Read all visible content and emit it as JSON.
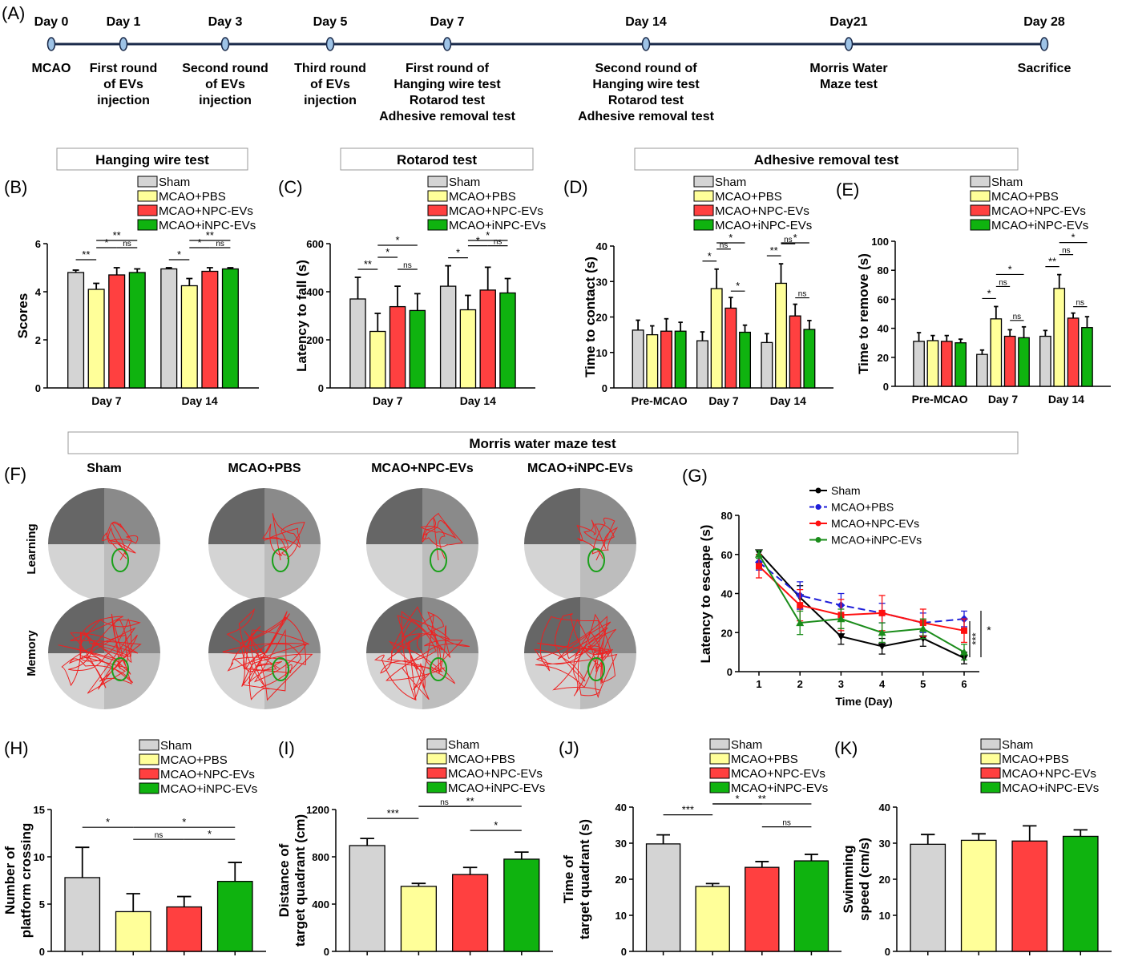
{
  "colors": {
    "sham": "#d4d4d4",
    "pbs": "#ffff99",
    "npc": "#ff4040",
    "inpc": "#0fb30f",
    "line_sham": "#000000",
    "line_pbs": "#1f1fd9",
    "line_npc": "#ff1010",
    "line_inpc": "#1a8c1a",
    "quad_dark": "#666666",
    "quad_mid": "#8a8a8a",
    "quad_light": "#bdbdbd",
    "quad_pale": "#d4d4d4",
    "track": "#ee2020",
    "platform": "#1aa01a"
  },
  "legend": [
    "Sham",
    "MCAO+PBS",
    "MCAO+NPC-EVs",
    "MCAO+iNPC-EVs"
  ],
  "timeline": {
    "panel": "(A)",
    "events": [
      {
        "day": "Day 0",
        "lines": [
          "MCAO"
        ]
      },
      {
        "day": "Day 1",
        "lines": [
          "First round",
          "of EVs",
          "injection"
        ]
      },
      {
        "day": "Day 3",
        "lines": [
          "Second round",
          "of EVs",
          "injection"
        ]
      },
      {
        "day": "Day 5",
        "lines": [
          "Third round",
          "of EVs",
          "injection"
        ]
      },
      {
        "day": "Day 7",
        "lines": [
          "First round of",
          "Hanging wire test",
          "Rotarod test",
          "Adhesive removal test"
        ]
      },
      {
        "day": "Day 14",
        "lines": [
          "Second round of",
          "Hanging wire test",
          "Rotarod test",
          "Adhesive removal test"
        ]
      },
      {
        "day": "Day21",
        "lines": [
          "Morris Water",
          "Maze test"
        ]
      },
      {
        "day": "Day 28",
        "lines": [
          "Sacrifice"
        ]
      }
    ]
  },
  "section_titles": {
    "hanging": "Hanging wire test",
    "rotarod": "Rotarod test",
    "adhesive": "Adhesive removal test",
    "morris": "Morris water maze test"
  },
  "maze": {
    "panel": "(F)",
    "columns": [
      "Sham",
      "MCAO+PBS",
      "MCAO+NPC-EVs",
      "MCAO+iNPC-EVs"
    ],
    "rows": [
      "Learning",
      "Memory"
    ]
  },
  "chart_data": [
    {
      "panel": "(B)",
      "type": "bar",
      "ylabel": "Scores",
      "ylim": [
        0,
        6
      ],
      "yticks": [
        0,
        2,
        4,
        6
      ],
      "groups": [
        "Day 7",
        "Day 14"
      ],
      "values": [
        [
          4.8,
          4.1,
          4.7,
          4.8
        ],
        [
          4.95,
          4.25,
          4.85,
          4.95
        ]
      ],
      "errors": [
        [
          0.1,
          0.25,
          0.3,
          0.15
        ],
        [
          0.05,
          0.3,
          0.15,
          0.05
        ]
      ],
      "sig": [
        {
          "g": 0,
          "a": 0,
          "b": 1,
          "t": "**",
          "lv": 0
        },
        {
          "g": 0,
          "a": 1,
          "b": 2,
          "t": "*",
          "lv": 1
        },
        {
          "g": 0,
          "a": 2,
          "b": 3,
          "t": "ns",
          "lv": 1
        },
        {
          "g": 0,
          "a": 1,
          "b": 3,
          "t": "**",
          "lv": 2
        },
        {
          "g": 1,
          "a": 0,
          "b": 1,
          "t": "*",
          "lv": 0
        },
        {
          "g": 1,
          "a": 1,
          "b": 2,
          "t": "*",
          "lv": 1
        },
        {
          "g": 1,
          "a": 2,
          "b": 3,
          "t": "ns",
          "lv": 1
        },
        {
          "g": 1,
          "a": 1,
          "b": 3,
          "t": "**",
          "lv": 2
        }
      ]
    },
    {
      "panel": "(C)",
      "type": "bar",
      "ylabel": "Latency to fall (s)",
      "ylim": [
        0,
        600
      ],
      "yticks": [
        0,
        200,
        400,
        600
      ],
      "groups": [
        "Day 7",
        "Day 14"
      ],
      "values": [
        [
          370,
          235,
          338,
          322
        ],
        [
          423,
          325,
          407,
          395
        ]
      ],
      "errors": [
        [
          90,
          75,
          85,
          70
        ],
        [
          85,
          60,
          95,
          60
        ]
      ],
      "sig": [
        {
          "g": 0,
          "a": 0,
          "b": 1,
          "t": "**",
          "lv": 0
        },
        {
          "g": 0,
          "a": 1,
          "b": 2,
          "t": "*",
          "lv": 1
        },
        {
          "g": 0,
          "a": 2,
          "b": 3,
          "t": "ns",
          "lv": 0
        },
        {
          "g": 0,
          "a": 1,
          "b": 3,
          "t": "*",
          "lv": 2
        },
        {
          "g": 1,
          "a": 0,
          "b": 1,
          "t": "*",
          "lv": 0
        },
        {
          "g": 1,
          "a": 1,
          "b": 2,
          "t": "*",
          "lv": 1
        },
        {
          "g": 1,
          "a": 2,
          "b": 3,
          "t": "ns",
          "lv": 1
        },
        {
          "g": 1,
          "a": 1,
          "b": 3,
          "t": "*",
          "lv": 2
        }
      ]
    },
    {
      "panel": "(D)",
      "type": "bar",
      "ylabel": "Time to contact (s)",
      "ylim": [
        0,
        40
      ],
      "yticks": [
        0,
        10,
        20,
        30,
        40
      ],
      "groups": [
        "Pre-MCAO",
        "Day 7",
        "Day 14"
      ],
      "values": [
        [
          16.3,
          15.0,
          16.0,
          16.0
        ],
        [
          13.3,
          28.0,
          22.5,
          15.7
        ],
        [
          12.8,
          29.5,
          20.3,
          16.5
        ]
      ],
      "errors": [
        [
          2.8,
          2.5,
          3.5,
          2.5
        ],
        [
          2.5,
          5.5,
          3.0,
          2.0
        ],
        [
          2.5,
          5.5,
          3.3,
          2.5
        ]
      ],
      "sig": [
        {
          "g": 1,
          "a": 0,
          "b": 1,
          "t": "*",
          "lv": 0
        },
        {
          "g": 1,
          "a": 1,
          "b": 2,
          "t": "ns",
          "lv": 1
        },
        {
          "g": 1,
          "a": 1,
          "b": 3,
          "t": "*",
          "lv": 2
        },
        {
          "g": 1,
          "a": 2,
          "b": 3,
          "t": "*",
          "lv": -1
        },
        {
          "g": 2,
          "a": 0,
          "b": 1,
          "t": "**",
          "lv": 0
        },
        {
          "g": 2,
          "a": 1,
          "b": 2,
          "t": "ns",
          "lv": 1
        },
        {
          "g": 2,
          "a": 1,
          "b": 3,
          "t": "*",
          "lv": 2
        },
        {
          "g": 2,
          "a": 2,
          "b": 3,
          "t": "ns",
          "lv": -1
        }
      ]
    },
    {
      "panel": "(E)",
      "type": "bar",
      "ylabel": "Time to remove (s)",
      "ylim": [
        0,
        100
      ],
      "yticks": [
        0,
        20,
        40,
        60,
        80,
        100
      ],
      "groups": [
        "Pre-MCAO",
        "Day 7",
        "Day 14"
      ],
      "values": [
        [
          31,
          31.5,
          31,
          30
        ],
        [
          22,
          46.5,
          34.5,
          33.5
        ],
        [
          34.5,
          67.5,
          47,
          40.5
        ]
      ],
      "errors": [
        [
          6,
          3.5,
          4,
          2.5
        ],
        [
          3,
          8.5,
          4.5,
          7.5
        ],
        [
          4,
          9.5,
          3.5,
          7.5
        ]
      ],
      "sig": [
        {
          "g": 1,
          "a": 0,
          "b": 1,
          "t": "*",
          "lv": 0
        },
        {
          "g": 1,
          "a": 1,
          "b": 2,
          "t": "ns",
          "lv": 1
        },
        {
          "g": 1,
          "a": 1,
          "b": 3,
          "t": "*",
          "lv": 2
        },
        {
          "g": 1,
          "a": 2,
          "b": 3,
          "t": "ns",
          "lv": -1
        },
        {
          "g": 2,
          "a": 0,
          "b": 1,
          "t": "**",
          "lv": 0
        },
        {
          "g": 2,
          "a": 1,
          "b": 2,
          "t": "ns",
          "lv": 1
        },
        {
          "g": 2,
          "a": 1,
          "b": 3,
          "t": "*",
          "lv": 2
        },
        {
          "g": 2,
          "a": 2,
          "b": 3,
          "t": "ns",
          "lv": -1
        }
      ]
    },
    {
      "panel": "(G)",
      "type": "line",
      "xlabel": "Time (Day)",
      "ylabel": "Latency to escape (s)",
      "x": [
        1,
        2,
        3,
        4,
        5,
        6
      ],
      "ylim": [
        0,
        80
      ],
      "yticks": [
        0,
        20,
        40,
        60,
        80
      ],
      "series": [
        {
          "name": "Sham",
          "values": [
            61,
            38,
            18,
            13,
            17,
            7
          ],
          "errors": [
            1,
            6,
            4,
            4,
            4,
            3
          ]
        },
        {
          "name": "MCAO+PBS",
          "values": [
            56,
            39,
            34,
            30,
            25,
            27
          ],
          "errors": [
            4,
            7,
            6,
            5,
            5,
            4
          ]
        },
        {
          "name": "MCAO+NPC-EVs",
          "values": [
            54,
            34,
            29,
            30,
            25,
            21
          ],
          "errors": [
            6,
            8,
            8,
            9,
            7,
            6
          ]
        },
        {
          "name": "MCAO+iNPC-EVs",
          "values": [
            60,
            25,
            27,
            20,
            22,
            10
          ],
          "errors": [
            2,
            6,
            5,
            5,
            5,
            4
          ]
        }
      ],
      "sig": [
        "***",
        "*"
      ]
    },
    {
      "panel": "(H)",
      "type": "bar",
      "ylabel": [
        "Number of",
        "platform crossing"
      ],
      "ylim": [
        0,
        15
      ],
      "yticks": [
        0,
        5,
        10,
        15
      ],
      "values": [
        7.8,
        4.2,
        4.7,
        7.4
      ],
      "errors": [
        3.2,
        1.9,
        1.1,
        2.0
      ],
      "sig": [
        {
          "a": 0,
          "b": 1,
          "t": "*",
          "lv": 1
        },
        {
          "a": 1,
          "b": 2,
          "t": "ns",
          "lv": 0
        },
        {
          "a": 1,
          "b": 3,
          "t": "*",
          "lv": 1
        },
        {
          "a": 2,
          "b": 3,
          "t": "*",
          "lv": 0
        }
      ]
    },
    {
      "panel": "(I)",
      "type": "bar",
      "ylabel": [
        "Distance of",
        "target quadrant (cm)"
      ],
      "ylim": [
        0,
        1200
      ],
      "yticks": [
        0,
        400,
        800,
        1200
      ],
      "values": [
        895,
        550,
        650,
        780
      ],
      "errors": [
        60,
        25,
        60,
        60
      ],
      "sig": [
        {
          "a": 0,
          "b": 1,
          "t": "***",
          "lv": 1
        },
        {
          "a": 1,
          "b": 2,
          "t": "ns",
          "lv": 2
        },
        {
          "a": 1,
          "b": 3,
          "t": "**",
          "lv": 3
        },
        {
          "a": 2,
          "b": 3,
          "t": "*",
          "lv": 0
        }
      ]
    },
    {
      "panel": "(J)",
      "type": "bar",
      "ylabel": [
        "Time of",
        "target quadrant (s)"
      ],
      "ylim": [
        0,
        40
      ],
      "yticks": [
        0,
        10,
        20,
        30,
        40
      ],
      "values": [
        29.8,
        18.0,
        23.3,
        25.1
      ],
      "errors": [
        2.5,
        0.8,
        1.6,
        1.8
      ],
      "sig": [
        {
          "a": 0,
          "b": 1,
          "t": "***",
          "lv": 1
        },
        {
          "a": 1,
          "b": 2,
          "t": "*",
          "lv": 2
        },
        {
          "a": 1,
          "b": 3,
          "t": "**",
          "lv": 3
        },
        {
          "a": 2,
          "b": 3,
          "t": "ns",
          "lv": 0
        }
      ]
    },
    {
      "panel": "(K)",
      "type": "bar",
      "ylabel": [
        "Swimming",
        "speed (cm/s)"
      ],
      "ylim": [
        0,
        40
      ],
      "yticks": [
        0,
        10,
        20,
        30,
        40
      ],
      "values": [
        29.7,
        30.8,
        30.6,
        31.9
      ],
      "errors": [
        2.7,
        1.8,
        4.2,
        1.8
      ],
      "sig": []
    }
  ]
}
